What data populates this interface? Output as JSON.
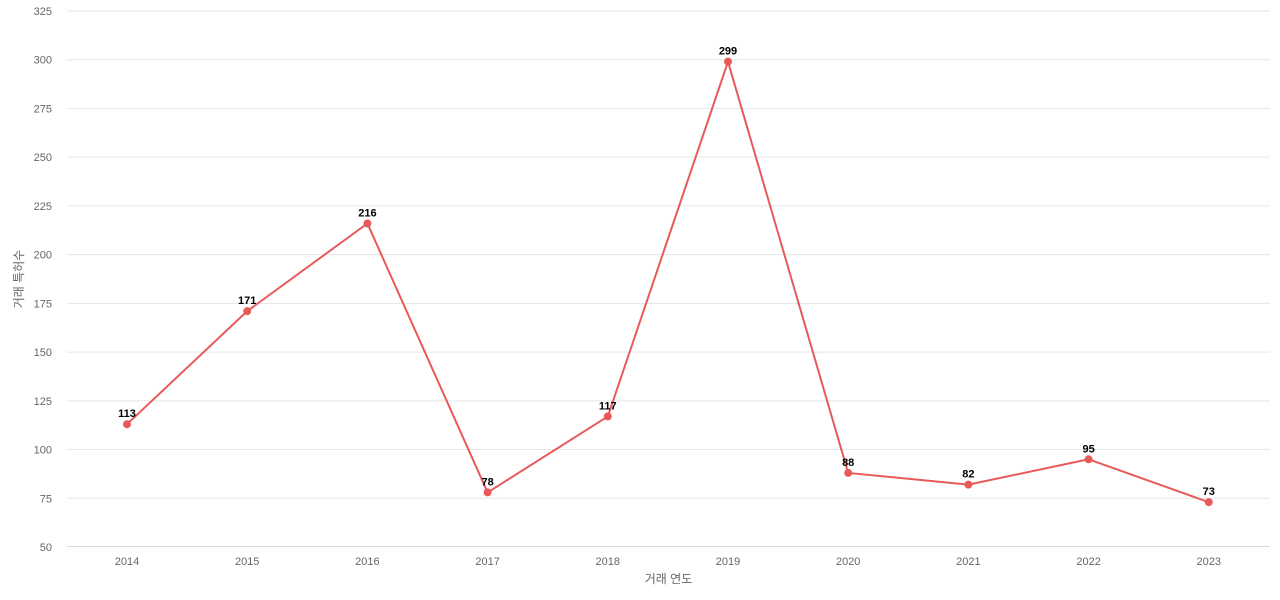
{
  "chart_data": {
    "type": "line",
    "title": "",
    "xlabel": "거래 연도",
    "ylabel": "거래 특허수",
    "categories": [
      "2014",
      "2015",
      "2016",
      "2017",
      "2018",
      "2019",
      "2020",
      "2021",
      "2022",
      "2023"
    ],
    "series": [
      {
        "values": [
          113,
          171,
          216,
          78,
          117,
          299,
          88,
          82,
          95,
          73
        ],
        "color": "#e85a5a"
      }
    ],
    "ylim": [
      50,
      325
    ],
    "yticks": [
      50,
      75,
      100,
      125,
      150,
      175,
      200,
      225,
      250,
      275,
      300,
      325
    ],
    "grid": true,
    "legend": "none",
    "data_labels": true
  }
}
